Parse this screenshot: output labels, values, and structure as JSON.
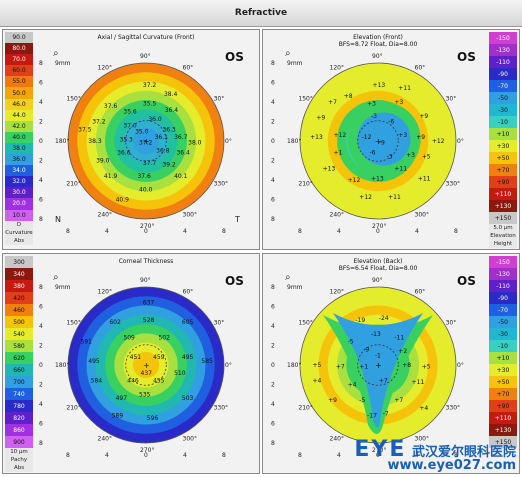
{
  "header": {
    "title": "Refractive"
  },
  "panels": [
    {
      "title": "Axial / Sagittal Curvature (Front)",
      "subtitle": "",
      "eye": "OS",
      "size": "9mm",
      "left": "N",
      "right": "T",
      "scale_foot": [
        "D",
        "Curvature",
        "Abs"
      ],
      "scale": [
        "90.0",
        "80.0",
        "70.0",
        "60.0",
        "55.0",
        "50.0",
        "46.0",
        "44.0",
        "42.0",
        "40.0",
        "38.0",
        "36.0",
        "34.0",
        "32.0",
        "30.0",
        "20.0",
        "10.0"
      ],
      "scale_colors": [
        "#c8c8c8",
        "#8a1a10",
        "#c41a10",
        "#e04018",
        "#f07a10",
        "#f5a40a",
        "#f0d020",
        "#e4ec2c",
        "#a8e040",
        "#38d060",
        "#20b8b0",
        "#30a0e0",
        "#2060e0",
        "#2a2ac8",
        "#6020c8",
        "#a030e0",
        "#d060f0"
      ],
      "values": [
        {
          "t": "37.2"
        },
        {
          "t": "38.4"
        },
        {
          "t": "37.6"
        },
        {
          "t": "35.5"
        },
        {
          "t": "36.4"
        },
        {
          "t": "37.2"
        },
        {
          "t": "35.6"
        },
        {
          "t": "36.0"
        },
        {
          "t": "37.5"
        },
        {
          "t": "37.0"
        },
        {
          "t": "36.3"
        },
        {
          "t": "35.0"
        },
        {
          "t": "36.1"
        },
        {
          "t": "36.7"
        },
        {
          "t": "38.3"
        },
        {
          "t": "35.3"
        },
        {
          "t": "37.2"
        },
        {
          "t": "38.0"
        },
        {
          "t": "36.6"
        },
        {
          "t": "36.8"
        },
        {
          "t": "36.4"
        },
        {
          "t": "39.0"
        },
        {
          "t": "37.7"
        },
        {
          "t": "39.2"
        },
        {
          "t": "41.9"
        },
        {
          "t": "37.6"
        },
        {
          "t": "40.1"
        },
        {
          "t": "40.0"
        },
        {
          "t": "40.9"
        }
      ]
    },
    {
      "title": "Elevation (Front)",
      "subtitle": "BFS=8.72 Float, Dia=8.00",
      "eye": "OS",
      "size": "9mm",
      "left": "",
      "right": "",
      "scale_foot": [
        "5.0 µm",
        "Elevation",
        "Height"
      ],
      "scale": [
        "-150",
        "-130",
        "-110",
        "-90",
        "-70",
        "-50",
        "-30",
        "-10",
        "+10",
        "+30",
        "+50",
        "+70",
        "+90",
        "+110",
        "+130",
        "+150"
      ],
      "scale_colors": [
        "#d040d0",
        "#a030c8",
        "#6020c8",
        "#2a2ac8",
        "#2060e0",
        "#30a0e0",
        "#20b8d0",
        "#38d0c0",
        "#a8e040",
        "#e4ec2c",
        "#f5c40a",
        "#f08010",
        "#e04018",
        "#c41a10",
        "#8a1a10",
        "#c8c8c8"
      ],
      "values": [
        {
          "t": "+13"
        },
        {
          "t": "+11"
        },
        {
          "t": "+8"
        },
        {
          "t": "+7"
        },
        {
          "t": "+3"
        },
        {
          "t": "+3"
        },
        {
          "t": "+9"
        },
        {
          "t": "-3"
        },
        {
          "t": "-6"
        },
        {
          "t": "+9"
        },
        {
          "t": "+13"
        },
        {
          "t": "+12"
        },
        {
          "t": "-12"
        },
        {
          "t": "-9"
        },
        {
          "t": "+3"
        },
        {
          "t": "+9"
        },
        {
          "t": "+12"
        },
        {
          "t": "+1"
        },
        {
          "t": "-6"
        },
        {
          "t": "-3"
        },
        {
          "t": "+3"
        },
        {
          "t": "+5"
        },
        {
          "t": "+13"
        },
        {
          "t": "+11"
        },
        {
          "t": "+12"
        },
        {
          "t": "+13"
        },
        {
          "t": "+11"
        },
        {
          "t": "+12"
        },
        {
          "t": "+11"
        }
      ]
    },
    {
      "title": "Corneal Thickness",
      "subtitle": "",
      "eye": "OS",
      "size": "9mm",
      "left": "",
      "right": "",
      "scale_foot": [
        "10 µm",
        "Pachy",
        "Abs"
      ],
      "scale": [
        "300",
        "340",
        "380",
        "420",
        "460",
        "500",
        "540",
        "580",
        "620",
        "660",
        "700",
        "740",
        "780",
        "820",
        "860",
        "900"
      ],
      "scale_colors": [
        "#c8c8c8",
        "#8a1a10",
        "#c41a10",
        "#e04018",
        "#f08010",
        "#f5c40a",
        "#e4ec2c",
        "#a8e040",
        "#38d060",
        "#20b8b0",
        "#30a0e0",
        "#2060e0",
        "#2a2ac8",
        "#6020c8",
        "#a030e0",
        "#d060f0"
      ],
      "values": [
        {
          "t": "637"
        },
        {
          "t": "602"
        },
        {
          "t": "528"
        },
        {
          "t": "605"
        },
        {
          "t": "591"
        },
        {
          "t": "509"
        },
        {
          "t": "502"
        },
        {
          "t": "495"
        },
        {
          "t": "451"
        },
        {
          "t": "459"
        },
        {
          "t": "495"
        },
        {
          "t": "585"
        },
        {
          "t": "437"
        },
        {
          "t": "510"
        },
        {
          "t": "584"
        },
        {
          "t": "446"
        },
        {
          "t": "455"
        },
        {
          "t": "497"
        },
        {
          "t": "535"
        },
        {
          "t": "503"
        },
        {
          "t": "589"
        },
        {
          "t": "596"
        }
      ]
    },
    {
      "title": "Elevation (Back)",
      "subtitle": "BFS=6.54 Float, Dia=8.00",
      "eye": "OS",
      "size": "9mm",
      "left": "",
      "right": "",
      "scale_foot": [
        "",
        "",
        ""
      ],
      "scale": [
        "-150",
        "-130",
        "-110",
        "-90",
        "-70",
        "-50",
        "-30",
        "-10",
        "+10",
        "+30",
        "+50",
        "+70",
        "+90",
        "+110",
        "+130",
        "+150"
      ],
      "scale_colors": [
        "#d040d0",
        "#a030c8",
        "#6020c8",
        "#2a2ac8",
        "#2060e0",
        "#30a0e0",
        "#20b8d0",
        "#38d0c0",
        "#a8e040",
        "#e4ec2c",
        "#f5c40a",
        "#f08010",
        "#e04018",
        "#c41a10",
        "#8a1a10",
        "#c8c8c8"
      ],
      "values": [
        {
          "t": "-24"
        },
        {
          "t": "-19"
        },
        {
          "t": "-11"
        },
        {
          "t": "-5"
        },
        {
          "t": "-13"
        },
        {
          "t": "-9"
        },
        {
          "t": "+2"
        },
        {
          "t": "-1"
        },
        {
          "t": "+5"
        },
        {
          "t": "+7"
        },
        {
          "t": "+1"
        },
        {
          "t": "+8"
        },
        {
          "t": "+5"
        },
        {
          "t": "+4"
        },
        {
          "t": "+7"
        },
        {
          "t": "+11"
        },
        {
          "t": "+4"
        },
        {
          "t": "+9"
        },
        {
          "t": "-5"
        },
        {
          "t": "+7"
        },
        {
          "t": "-17"
        },
        {
          "t": "+4"
        },
        {
          "t": "-7"
        }
      ]
    }
  ],
  "angles": [
    "90°",
    "60°",
    "30°",
    "0°",
    "330°",
    "300°",
    "270°",
    "240°",
    "210°",
    "180°",
    "150°",
    "120°"
  ],
  "yticks": [
    "8",
    "6",
    "4",
    "2",
    "0",
    "2",
    "4",
    "6",
    "8"
  ],
  "xticks": [
    "8",
    "4",
    "0",
    "4",
    "8"
  ],
  "watermark": {
    "logo": "EYE",
    "chinese": "武汉爱尔眼科医院",
    "url": "www.eye027.com"
  }
}
